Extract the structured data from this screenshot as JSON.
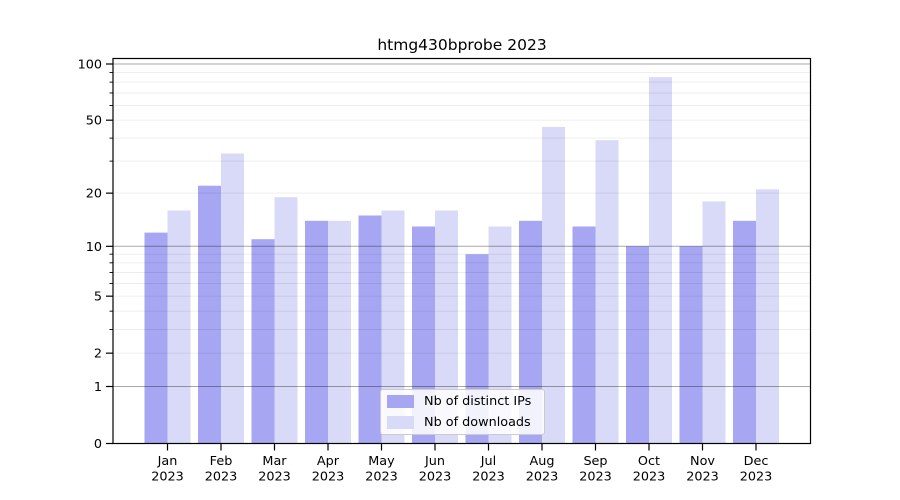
{
  "chart_data": {
    "type": "bar",
    "title": "htmg430bprobe 2023",
    "categories": [
      "Jan",
      "Feb",
      "Mar",
      "Apr",
      "May",
      "Jun",
      "Jul",
      "Aug",
      "Sep",
      "Oct",
      "Nov",
      "Dec"
    ],
    "category_year": "2023",
    "series": [
      {
        "name": "Nb of distinct IPs",
        "color": "#a6a6f2",
        "values": [
          12,
          22,
          11,
          14,
          15,
          13,
          9,
          14,
          13,
          10,
          10,
          14
        ]
      },
      {
        "name": "Nb of downloads",
        "color": "#d9d9f8",
        "values": [
          16,
          33,
          19,
          14,
          16,
          16,
          13,
          46,
          39,
          85,
          18,
          21
        ]
      }
    ],
    "y_scale": "log10(1+value)",
    "ylim": [
      0,
      107
    ],
    "y_ticks": [
      0,
      1,
      2,
      5,
      10,
      20,
      50,
      100
    ],
    "y_minor_ticks": [
      3,
      4,
      6,
      7,
      8,
      9,
      30,
      40,
      60,
      70,
      80,
      90
    ],
    "y_gridlines_major": [
      1,
      10,
      100
    ],
    "y_gridlines_minor": [
      2,
      3,
      4,
      5,
      6,
      7,
      8,
      9,
      20,
      30,
      40,
      50,
      60,
      70,
      80,
      90
    ],
    "grid": "horizontal",
    "legend_position": "bottom-center",
    "xlabel": "",
    "ylabel": ""
  },
  "colors": {
    "background": "#ffffff",
    "axis": "#000000",
    "grid_major": "rgba(0,0,0,0.34)",
    "grid_minor": "rgba(0,0,0,0.075)",
    "text": "#000000",
    "legend_border": "#cccccc"
  }
}
